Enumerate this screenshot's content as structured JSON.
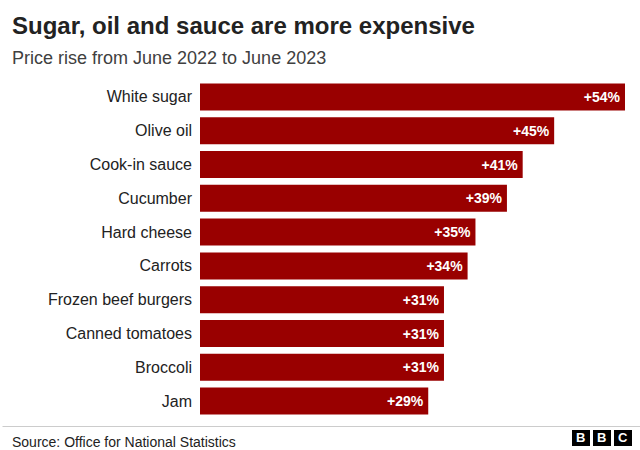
{
  "chart_data": {
    "type": "bar",
    "title": "Sugar, oil and sauce are more expensive",
    "subtitle": "Price rise from June 2022 to June 2023",
    "source": "Source: Office for National Statistics",
    "logo": "BBC",
    "orientation": "horizontal",
    "categories": [
      "White sugar",
      "Olive oil",
      "Cook-in sauce",
      "Cucumber",
      "Hard cheese",
      "Carrots",
      "Frozen beef burgers",
      "Canned tomatoes",
      "Broccoli",
      "Jam"
    ],
    "values": [
      54,
      45,
      41,
      39,
      35,
      34,
      31,
      31,
      31,
      29
    ],
    "value_labels": [
      "+54%",
      "+45%",
      "+41%",
      "+39%",
      "+35%",
      "+34%",
      "+31%",
      "+31%",
      "+31%",
      "+29%"
    ],
    "color": "#990000",
    "xlim": [
      0,
      54
    ],
    "grid": false,
    "data_labels": true,
    "tick_labels": "y"
  }
}
